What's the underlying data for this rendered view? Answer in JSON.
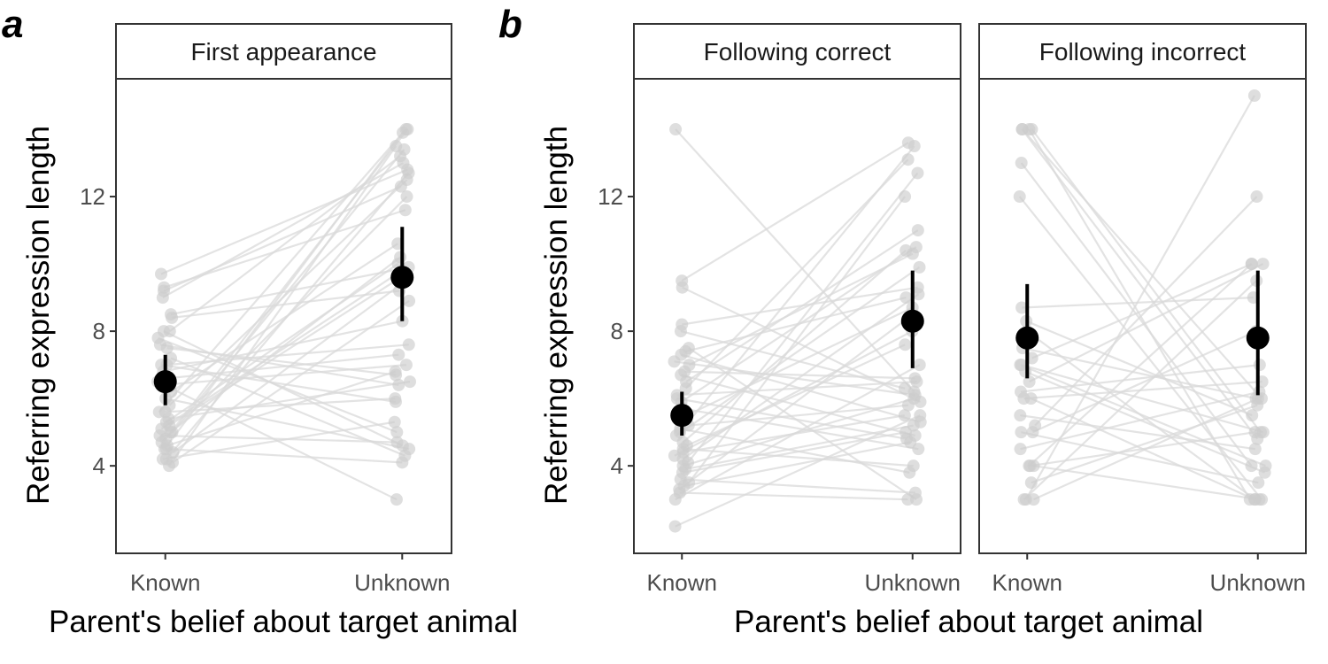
{
  "figure": {
    "panel_a_label": "a",
    "panel_b_label": "b",
    "y_axis_title": "Referring expression length",
    "x_axis_title": "Parent's belief about target animal"
  },
  "colors": {
    "individual_point": "#cccccc",
    "individual_line": "#d9d9d9",
    "mean_point": "#000000",
    "frame": "#333333",
    "strip_fill": "#ffffff"
  },
  "chart_data": [
    {
      "type": "scatter",
      "title": "First appearance",
      "xlabel": "Parent's belief about target animal",
      "ylabel": "Referring expression length",
      "categories": [
        "Known",
        "Unknown"
      ],
      "ylim": [
        1.4,
        15.5
      ],
      "yticks": [
        4,
        8,
        12
      ],
      "grid": false,
      "mean": [
        {
          "category": "Known",
          "value": 6.5,
          "ci": [
            5.8,
            7.3
          ]
        },
        {
          "category": "Unknown",
          "value": 9.6,
          "ci": [
            8.3,
            11.1
          ]
        }
      ],
      "pairs": [
        [
          4.0,
          13.5
        ],
        [
          4.2,
          12.7
        ],
        [
          4.5,
          13.9
        ],
        [
          4.7,
          12.0
        ],
        [
          5.0,
          10.2
        ],
        [
          5.2,
          9.7
        ],
        [
          5.6,
          6.0
        ],
        [
          4.8,
          14.0
        ],
        [
          6.0,
          4.5
        ],
        [
          6.5,
          3.0
        ],
        [
          7.0,
          7.6
        ],
        [
          7.5,
          6.7
        ],
        [
          8.0,
          4.6
        ],
        [
          8.5,
          9.9
        ],
        [
          9.0,
          13.0
        ],
        [
          9.3,
          11.6
        ],
        [
          9.7,
          12.8
        ],
        [
          4.4,
          9.5
        ],
        [
          5.4,
          6.5
        ],
        [
          6.2,
          10.6
        ],
        [
          7.2,
          4.3
        ],
        [
          7.8,
          5.0
        ],
        [
          4.6,
          6.8
        ],
        [
          5.0,
          13.4
        ],
        [
          6.4,
          7.0
        ],
        [
          5.8,
          12.5
        ],
        [
          4.9,
          4.7
        ],
        [
          8.4,
          9.2
        ],
        [
          7.6,
          6.4
        ],
        [
          4.2,
          5.3
        ],
        [
          5.3,
          10.0
        ],
        [
          6.8,
          8.3
        ],
        [
          9.2,
          12.3
        ],
        [
          4.5,
          4.1
        ],
        [
          5.6,
          14.0
        ],
        [
          6.6,
          7.3
        ],
        [
          4.1,
          8.9
        ],
        [
          7.0,
          5.9
        ],
        [
          5.1,
          9.8
        ],
        [
          8.0,
          13.2
        ]
      ]
    },
    {
      "type": "scatter",
      "title": "Following correct",
      "xlabel": "Parent's belief about target animal",
      "ylabel": "Referring expression length",
      "categories": [
        "Known",
        "Unknown"
      ],
      "ylim": [
        1.4,
        15.5
      ],
      "yticks": [
        4,
        8,
        12
      ],
      "grid": false,
      "mean": [
        {
          "category": "Known",
          "value": 5.5,
          "ci": [
            4.9,
            6.2
          ]
        },
        {
          "category": "Unknown",
          "value": 8.3,
          "ci": [
            6.9,
            9.8
          ]
        }
      ],
      "pairs": [
        [
          2.2,
          5.5
        ],
        [
          3.2,
          3.0
        ],
        [
          3.3,
          8.4
        ],
        [
          3.5,
          12.0
        ],
        [
          3.8,
          5.0
        ],
        [
          4.0,
          6.0
        ],
        [
          4.2,
          9.1
        ],
        [
          4.5,
          4.0
        ],
        [
          4.7,
          10.4
        ],
        [
          5.0,
          13.5
        ],
        [
          5.2,
          5.8
        ],
        [
          5.5,
          8.7
        ],
        [
          6.0,
          4.8
        ],
        [
          6.3,
          13.1
        ],
        [
          6.8,
          6.6
        ],
        [
          7.0,
          10.3
        ],
        [
          7.3,
          5.3
        ],
        [
          7.5,
          3.0
        ],
        [
          8.2,
          9.3
        ],
        [
          9.3,
          5.9
        ],
        [
          9.5,
          13.6
        ],
        [
          14.0,
          6.2
        ],
        [
          3.0,
          7.0
        ],
        [
          3.6,
          3.2
        ],
        [
          4.1,
          12.7
        ],
        [
          4.4,
          5.5
        ],
        [
          4.9,
          9.9
        ],
        [
          5.7,
          4.5
        ],
        [
          6.5,
          11.0
        ],
        [
          7.1,
          6.1
        ],
        [
          3.4,
          4.7
        ],
        [
          4.3,
          8.0
        ],
        [
          5.1,
          3.8
        ],
        [
          6.1,
          6.5
        ],
        [
          7.4,
          9.0
        ],
        [
          3.9,
          5.2
        ],
        [
          4.6,
          7.6
        ],
        [
          5.9,
          10.5
        ],
        [
          6.7,
          4.9
        ],
        [
          8.0,
          6.3
        ]
      ]
    },
    {
      "type": "scatter",
      "title": "Following incorrect",
      "xlabel": "Parent's belief about target animal",
      "ylabel": "Referring expression length",
      "categories": [
        "Known",
        "Unknown"
      ],
      "ylim": [
        1.4,
        15.5
      ],
      "yticks": [
        4,
        8,
        12
      ],
      "grid": false,
      "mean": [
        {
          "category": "Known",
          "value": 7.8,
          "ci": [
            6.6,
            9.4
          ]
        },
        {
          "category": "Unknown",
          "value": 7.8,
          "ci": [
            6.1,
            9.8
          ]
        }
      ],
      "pairs": [
        [
          3.0,
          15.0
        ],
        [
          3.0,
          9.5
        ],
        [
          3.0,
          6.0
        ],
        [
          4.0,
          10.0
        ],
        [
          4.0,
          3.0
        ],
        [
          4.0,
          5.0
        ],
        [
          5.0,
          3.5
        ],
        [
          5.0,
          8.0
        ],
        [
          5.5,
          4.5
        ],
        [
          6.0,
          6.5
        ],
        [
          6.0,
          3.0
        ],
        [
          6.5,
          10.0
        ],
        [
          7.0,
          5.0
        ],
        [
          7.0,
          4.0
        ],
        [
          7.5,
          6.0
        ],
        [
          8.0,
          3.0
        ],
        [
          8.3,
          5.5
        ],
        [
          8.7,
          9.0
        ],
        [
          12.0,
          3.0
        ],
        [
          13.0,
          4.0
        ],
        [
          14.0,
          3.0
        ],
        [
          14.0,
          5.0
        ],
        [
          14.0,
          6.0
        ],
        [
          14.0,
          4.8
        ],
        [
          6.2,
          7.0
        ],
        [
          5.2,
          12.0
        ],
        [
          4.5,
          6.2
        ],
        [
          7.2,
          10.0
        ],
        [
          6.8,
          3.8
        ],
        [
          3.5,
          5.8
        ]
      ]
    }
  ]
}
